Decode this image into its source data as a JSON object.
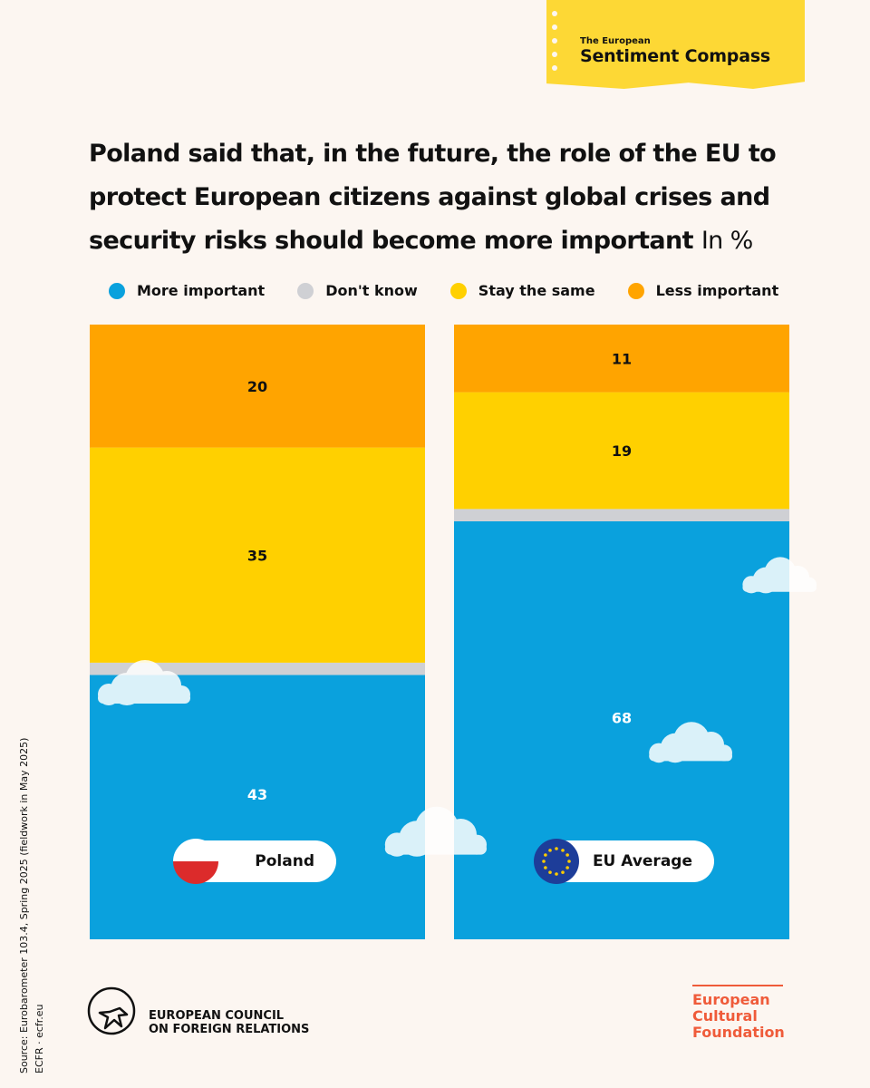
{
  "brand": {
    "small": "The European",
    "big": "Sentiment Compass"
  },
  "title": "Poland said that, in the future, the role of the EU to protect European citizens against global crises and security risks should become more important",
  "title_unit": "In %",
  "colors": {
    "more": "#0aa1dd",
    "dontknow": "#cfd0d4",
    "same": "#ffd000",
    "less": "#ffa400",
    "background": "#fcf6f1",
    "brand": "#fdd835",
    "ecf": "#ef5b3a"
  },
  "legend": [
    {
      "label": "More important",
      "color": "#0aa1dd"
    },
    {
      "label": "Don't know",
      "color": "#cfd0d4"
    },
    {
      "label": "Stay the same",
      "color": "#ffd000"
    },
    {
      "label": "Less important",
      "color": "#ffa400"
    }
  ],
  "chart_data": {
    "type": "bar",
    "stacked": true,
    "unit": "%",
    "categories": [
      "Poland",
      "EU Average"
    ],
    "series": [
      {
        "name": "More important",
        "values": [
          43,
          68
        ]
      },
      {
        "name": "Don't know",
        "values": [
          2,
          2
        ]
      },
      {
        "name": "Stay the same",
        "values": [
          35,
          19
        ]
      },
      {
        "name": "Less important",
        "values": [
          20,
          11
        ]
      }
    ],
    "labeled_series": [
      "More important",
      "Stay the same",
      "Less important"
    ]
  },
  "pills": {
    "left": "Poland",
    "right": "EU Average",
    "left_flag": "poland-flag-icon",
    "right_flag": "eu-flag-icon"
  },
  "source": {
    "line1": "Source: Eurobarometer 103.4, Spring 2025 (fieldwork in May 2025)",
    "line2": "ECFR · ecfr.eu"
  },
  "footer": {
    "ecfr_line1": "EUROPEAN COUNCIL",
    "ecfr_line2": "ON FOREIGN RELATIONS",
    "ecf_line1": "European",
    "ecf_line2": "Cultural",
    "ecf_line3": "Foundation"
  }
}
